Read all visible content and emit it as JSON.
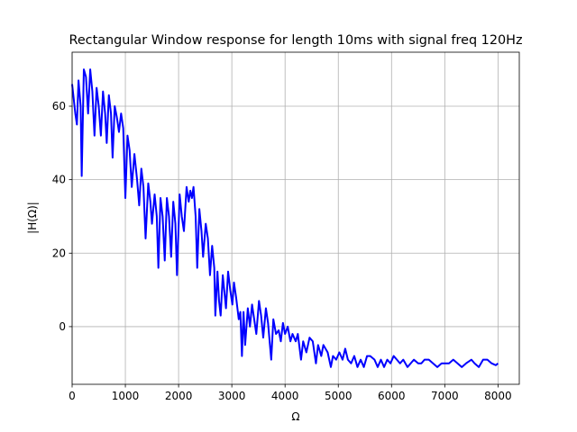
{
  "chart_data": {
    "type": "line",
    "title": "Rectangular Window response for length 10ms with signal freq 120Hz",
    "x_label": "Ω",
    "y_label": "|H(Ω)|",
    "xlim": [
      0,
      8400
    ],
    "ylim": [
      -15.7,
      74.7
    ],
    "xticks": [
      0,
      1000,
      2000,
      3000,
      4000,
      5000,
      6000,
      7000,
      8000
    ],
    "yticks": [
      0,
      20,
      40,
      60
    ],
    "grid": true,
    "series": [
      {
        "color": "#0000ff",
        "x": [
          0,
          60,
          90,
          120,
          160,
          180,
          220,
          260,
          300,
          340,
          380,
          420,
          460,
          500,
          540,
          580,
          620,
          650,
          690,
          730,
          760,
          800,
          840,
          880,
          920,
          960,
          1000,
          1040,
          1080,
          1120,
          1170,
          1220,
          1260,
          1300,
          1340,
          1380,
          1430,
          1470,
          1500,
          1550,
          1590,
          1620,
          1660,
          1700,
          1740,
          1780,
          1820,
          1860,
          1900,
          1940,
          1970,
          2020,
          2060,
          2100,
          2150,
          2190,
          2220,
          2250,
          2280,
          2320,
          2350,
          2390,
          2430,
          2460,
          2510,
          2550,
          2590,
          2630,
          2670,
          2690,
          2730,
          2760,
          2790,
          2830,
          2870,
          2890,
          2930,
          2970,
          3010,
          3040,
          3080,
          3130,
          3160,
          3190,
          3220,
          3250,
          3300,
          3340,
          3380,
          3420,
          3460,
          3510,
          3550,
          3590,
          3640,
          3680,
          3740,
          3780,
          3830,
          3880,
          3920,
          3960,
          4000,
          4050,
          4100,
          4140,
          4200,
          4240,
          4300,
          4340,
          4400,
          4460,
          4520,
          4580,
          4620,
          4680,
          4720,
          4800,
          4860,
          4900,
          4960,
          5020,
          5080,
          5130,
          5180,
          5240,
          5300,
          5360,
          5420,
          5480,
          5540,
          5600,
          5680,
          5740,
          5800,
          5860,
          5920,
          5980,
          6040,
          6100,
          6160,
          6220,
          6300,
          6360,
          6420,
          6500,
          6560,
          6620,
          6700,
          6780,
          6860,
          6940,
          7000,
          7080,
          7160,
          7240,
          7320,
          7400,
          7500,
          7560,
          7640,
          7720,
          7800,
          7880,
          7960,
          8000
        ],
        "values": [
          66,
          58,
          55,
          67,
          60,
          41,
          70,
          68,
          58,
          70,
          64,
          52,
          65,
          60,
          52,
          64,
          58,
          50,
          63,
          58,
          46,
          60,
          57,
          53,
          58,
          54,
          35,
          52,
          48,
          38,
          47,
          40,
          33,
          43,
          38,
          24,
          39,
          34,
          28,
          36,
          30,
          16,
          35,
          30,
          18,
          35,
          30,
          19,
          34,
          28,
          14,
          36,
          30,
          26,
          38,
          34,
          37,
          35,
          38,
          30,
          16,
          32,
          26,
          19,
          28,
          24,
          14,
          22,
          16,
          3,
          15,
          7,
          3,
          14,
          8,
          5,
          15,
          10,
          6,
          12,
          8,
          2,
          4,
          -8,
          4,
          -5,
          5,
          0,
          6,
          2,
          -2,
          7,
          3,
          -3,
          5,
          1,
          -9,
          2,
          -2,
          -1,
          -4,
          1,
          -2,
          0,
          -4,
          -2,
          -4,
          -2,
          -9,
          -4,
          -7,
          -3,
          -4,
          -10,
          -5,
          -8,
          -5,
          -7,
          -11,
          -8,
          -9,
          -7,
          -9,
          -6,
          -9,
          -10,
          -8,
          -11,
          -9,
          -11,
          -8,
          -8,
          -9,
          -11,
          -9,
          -11,
          -9,
          -10,
          -8,
          -9,
          -10,
          -9,
          -11,
          -10,
          -9,
          -10,
          -10,
          -9,
          -9,
          -10,
          -11,
          -10,
          -10,
          -10,
          -9,
          -10,
          -11,
          -10,
          -9,
          -10,
          -11,
          -9,
          -9,
          -10,
          -10.5,
          -10
        ]
      }
    ]
  }
}
